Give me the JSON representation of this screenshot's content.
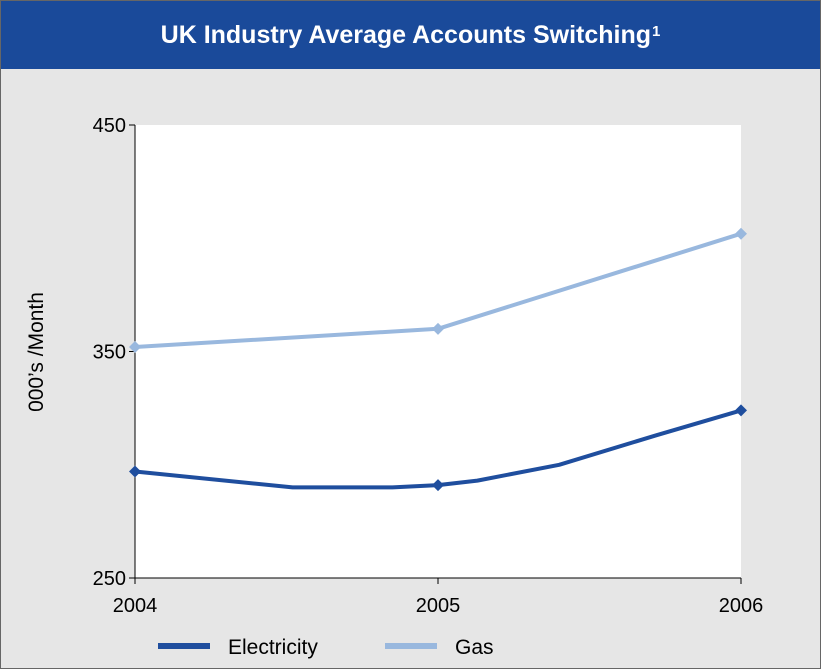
{
  "header": {
    "title": "UK Industry Average Accounts Switching",
    "footnote_mark": "1"
  },
  "chart_data": {
    "type": "line",
    "ylabel": "000’s /Month",
    "xlabel": "",
    "x": [
      2004,
      2005,
      2006
    ],
    "x_tick_labels": [
      "2004",
      "2005",
      "2006"
    ],
    "ylim": [
      250,
      450
    ],
    "y_ticks": [
      250,
      350,
      450
    ],
    "y_tick_labels": [
      "250",
      "350",
      "450"
    ],
    "series": [
      {
        "name": "Electricity",
        "color": "#1f4e9e",
        "points": [
          [
            2004,
            297
          ],
          [
            2004.52,
            290
          ],
          [
            2004.85,
            290
          ],
          [
            2005,
            291
          ],
          [
            2005.13,
            293
          ],
          [
            2005.4,
            300
          ],
          [
            2005.72,
            313
          ],
          [
            2006,
            324
          ]
        ],
        "markers": [
          [
            2004,
            297
          ],
          [
            2005,
            291
          ],
          [
            2006,
            324
          ]
        ]
      },
      {
        "name": "Gas",
        "color": "#99b8de",
        "points": [
          [
            2004,
            352
          ],
          [
            2005,
            360
          ],
          [
            2006,
            402
          ]
        ],
        "markers": [
          [
            2004,
            352
          ],
          [
            2005,
            360
          ],
          [
            2006,
            402
          ]
        ]
      }
    ],
    "legend": "bottom-left",
    "grid": false
  }
}
